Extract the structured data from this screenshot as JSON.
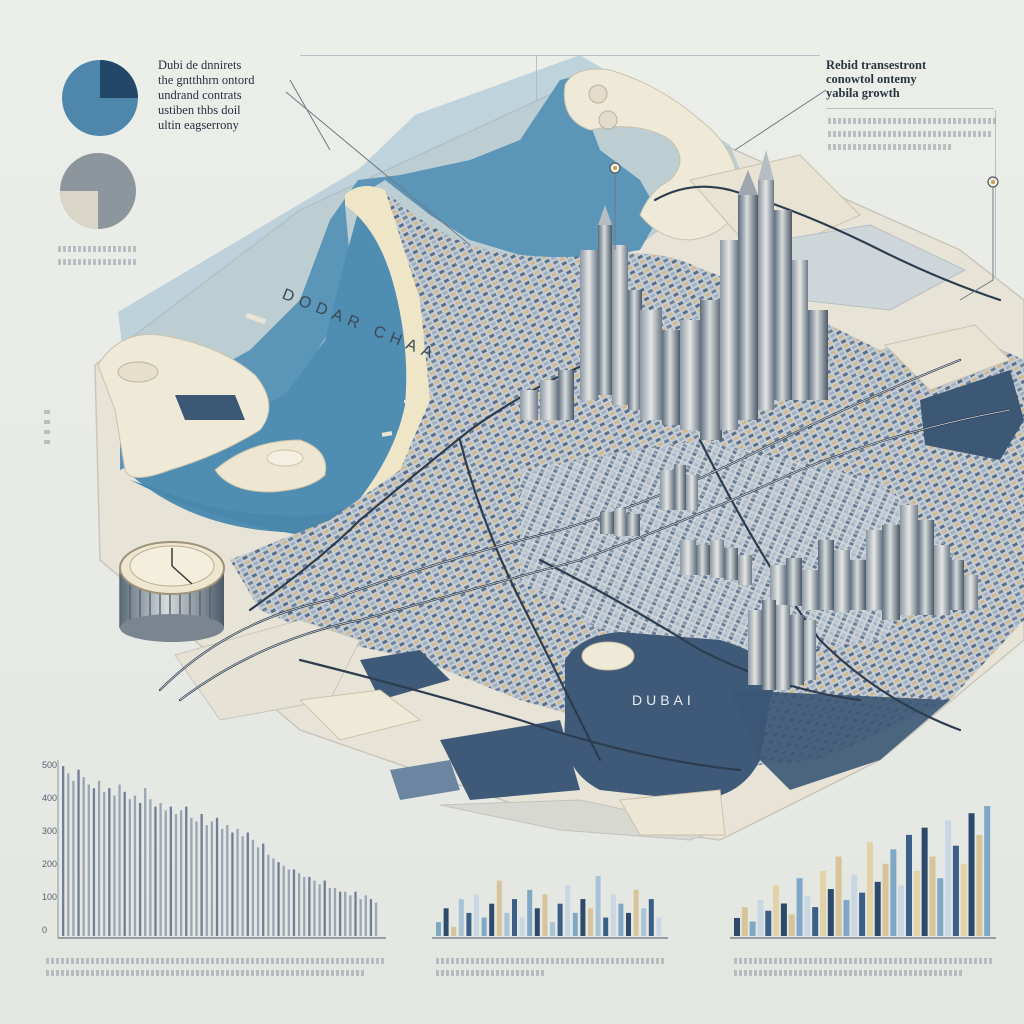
{
  "notes": {
    "top_left_lines": [
      "Dubi de dnnirets",
      "the gntthhrn ontord",
      "undrand contrats",
      "ustiben thbs doil",
      "ultin eagserrony"
    ],
    "top_right_lines": [
      "Rebid transestront",
      "conowtol ontemy",
      "yabila growth"
    ]
  },
  "map_labels": {
    "sea": "DODAR CHAA",
    "district": "DUBAI"
  },
  "colors": {
    "background": "#e9eae6",
    "water": "#5b95b8",
    "land": "#efe9d8",
    "dark_zone": "#3f5a78",
    "accent": "#c9a25a"
  },
  "icons": [
    "pie-chart-icon",
    "gray-pie-chart-icon",
    "clock-rotunda-icon",
    "location-pin-icon"
  ],
  "pie_charts": [
    {
      "name": "blue-pie",
      "slice_fraction": 0.26
    },
    {
      "name": "gray-pie",
      "slice_fraction": 0.25
    }
  ],
  "chart_data": [
    {
      "type": "bar",
      "values": [
        46,
        44,
        42,
        45,
        43,
        41,
        40,
        42,
        39,
        40,
        38,
        41,
        39,
        37,
        38,
        36,
        40,
        37,
        35,
        36,
        34,
        35,
        33,
        34,
        35,
        32,
        31,
        33,
        30,
        31,
        32,
        29,
        30,
        28,
        29,
        27,
        28,
        26,
        24,
        25,
        22,
        21,
        20,
        19,
        18,
        18,
        17,
        16,
        16,
        15,
        14,
        15,
        13,
        13,
        12,
        12,
        11,
        12,
        10,
        11,
        10,
        9
      ],
      "ytick_labels": [
        "500",
        "400",
        "300",
        "200",
        "100",
        "0"
      ]
    },
    {
      "type": "bar",
      "values": [
        3,
        6,
        2,
        8,
        5,
        9,
        4,
        7,
        12,
        5,
        8,
        4,
        10,
        6,
        9,
        3,
        7,
        11,
        5,
        8,
        6,
        13,
        4,
        9,
        7,
        5,
        10,
        6,
        8,
        4
      ],
      "colors": [
        "#7fa7c6",
        "#2e4a6b",
        "#d8c49a",
        "#a9c3d6",
        "#3b5f86",
        "#c9d7e2"
      ]
    },
    {
      "type": "bar",
      "values": [
        5,
        8,
        4,
        10,
        7,
        14,
        9,
        6,
        16,
        11,
        8,
        18,
        13,
        22,
        10,
        17,
        12,
        26,
        15,
        20,
        24,
        14,
        28,
        18,
        30,
        22,
        16,
        32,
        25,
        20,
        34,
        28,
        36
      ],
      "colors": [
        "#2e4a6b",
        "#d8c49a",
        "#7fa7c6",
        "#c9d7e2",
        "#3b5f86",
        "#e2d2a6"
      ]
    }
  ]
}
